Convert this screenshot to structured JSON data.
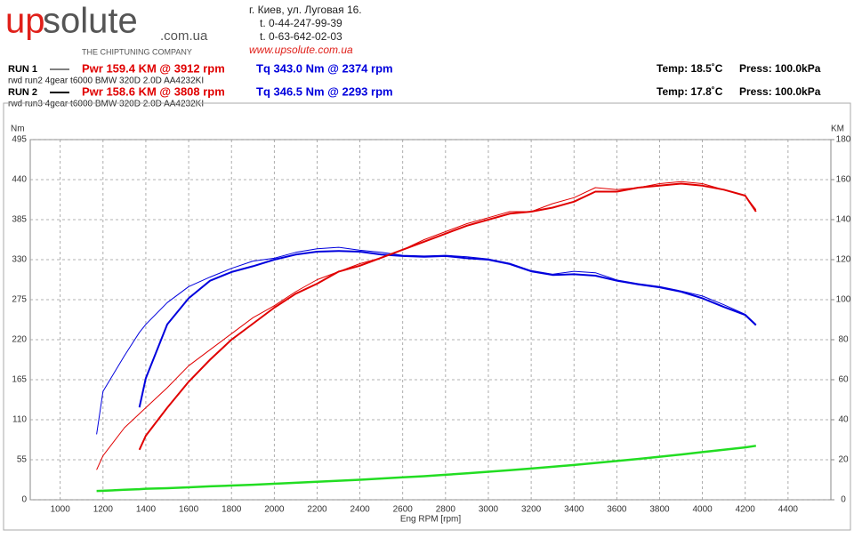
{
  "logo": {
    "prefix": "up",
    "main": "solute",
    "domain": ".com.ua",
    "tagline": "THE CHIPTUNING COMPANY"
  },
  "contact": {
    "address": "г. Киев, ул. Луговая 16.",
    "phones": [
      "t. 0-44-247-99-39",
      "t. 0-63-642-02-03"
    ],
    "website": "www.upsolute.com.ua"
  },
  "runs": [
    {
      "label": "RUN 1",
      "line_width": 1,
      "description": "rwd run2 4gear t6000 BMW 320D 2.0D AA4232KI",
      "power": "Pwr  159.4 KM @ 3912 rpm",
      "torque": "Tq 343.0 Nm @ 2374 rpm",
      "temp": "Temp: 18.5˚C",
      "press": "Press: 100.0kPa"
    },
    {
      "label": "RUN 2",
      "line_width": 2,
      "description": "rwd run3 4gear t6000 BMW 320D 2.0D AA4232KI",
      "power": "Pwr  158.6 KM @ 3808 rpm",
      "torque": "Tq 346.5 Nm @ 2293 rpm",
      "temp": "Temp: 17.8˚C",
      "press": "Press: 100.0kPa"
    }
  ],
  "chart_data": {
    "type": "line",
    "x_label": "Eng RPM [rpm]",
    "y_label": "Nm",
    "y2_label": "KM",
    "grid": true,
    "xlim": [
      860,
      4600
    ],
    "xticks": [
      1000,
      1200,
      1400,
      1600,
      1800,
      2000,
      2200,
      2400,
      2600,
      2800,
      3000,
      3200,
      3400,
      3600,
      3800,
      4000,
      4200,
      4400
    ],
    "ylim": [
      0,
      495
    ],
    "yticks": [
      0,
      55,
      110,
      165,
      220,
      275,
      330,
      385,
      440,
      495
    ],
    "y2lim": [
      0,
      180
    ],
    "y2ticks": [
      0,
      20,
      40,
      60,
      80,
      100,
      120,
      140,
      160,
      180
    ],
    "x": [
      1170,
      1200,
      1300,
      1370,
      1400,
      1500,
      1600,
      1700,
      1800,
      1900,
      2000,
      2100,
      2200,
      2300,
      2400,
      2500,
      2600,
      2700,
      2800,
      2900,
      3000,
      3100,
      3200,
      3300,
      3400,
      3500,
      3600,
      3700,
      3800,
      3900,
      4000,
      4100,
      4200,
      4250
    ],
    "series": [
      {
        "color": "#0000dd",
        "width": 1,
        "values": [
          90,
          149,
          198,
          230,
          241,
          271,
          293,
          306,
          318,
          328,
          332,
          340,
          345,
          347,
          343,
          340,
          336,
          335,
          336,
          334,
          331,
          325,
          315,
          310,
          314,
          312,
          302,
          297,
          293,
          287,
          280,
          268,
          255,
          241
        ]
      },
      {
        "color": "#0000dd",
        "width": 2,
        "values": [
          null,
          null,
          null,
          127,
          167,
          241,
          277,
          301,
          313,
          321,
          330,
          337,
          341,
          342,
          341,
          337,
          335,
          334,
          335,
          332,
          330,
          324,
          314,
          309,
          310,
          308,
          301,
          296,
          292,
          286,
          277,
          265,
          254,
          240
        ]
      },
      {
        "color": "#e00000",
        "width": 1,
        "axis": "y2",
        "values": [
          15,
          22,
          36,
          43,
          46,
          56,
          67,
          75,
          83,
          91,
          97,
          104,
          110,
          114,
          118,
          121,
          125,
          130,
          134,
          138,
          141,
          144,
          144,
          148,
          151,
          156,
          155,
          156,
          158,
          159,
          158,
          155,
          152,
          145
        ]
      },
      {
        "color": "#e00000",
        "width": 2,
        "axis": "y2",
        "values": [
          null,
          null,
          null,
          25,
          32,
          46,
          59,
          70,
          80,
          88,
          96,
          103,
          108,
          114,
          117,
          121,
          125,
          129,
          133,
          137,
          140,
          143,
          144,
          146,
          149,
          154,
          154,
          156,
          157,
          158,
          157,
          155,
          152,
          144
        ]
      },
      {
        "color": "#22dd22",
        "width": 2.5,
        "axis": "y2",
        "values": [
          4.4,
          4.5,
          5,
          5.3,
          5.5,
          5.8,
          6.2,
          6.7,
          7.1,
          7.5,
          8,
          8.5,
          9,
          9.5,
          10,
          10.6,
          11.2,
          11.8,
          12.5,
          13.2,
          14,
          14.8,
          15.6,
          16.5,
          17.4,
          18.4,
          19.4,
          20.4,
          21.5,
          22.6,
          23.8,
          25,
          26.2,
          27
        ]
      }
    ]
  }
}
